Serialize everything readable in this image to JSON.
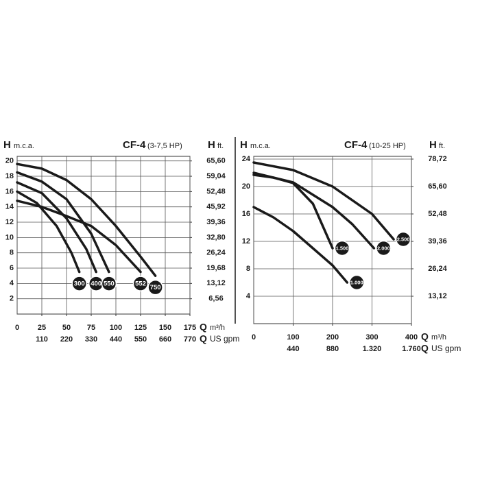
{
  "chart_data": [
    {
      "type": "line",
      "title": "CF-4",
      "subtitle": "(3-7,5 HP)",
      "y_label": "H",
      "y_unit": "m.c.a.",
      "y2_label": "H",
      "y2_unit": "ft.",
      "x_label": "Q",
      "x_unit": "m³/h",
      "x2_label": "Q",
      "x2_unit": "US gpm",
      "xlim": [
        0,
        175
      ],
      "xticks": [
        0,
        25,
        50,
        75,
        100,
        125,
        150,
        175
      ],
      "x2lim": [
        0,
        770
      ],
      "x2ticks": [
        110,
        220,
        330,
        440,
        550,
        660,
        770
      ],
      "ylim": [
        0,
        20.6
      ],
      "yticks": [
        2,
        4,
        6,
        8,
        10,
        12,
        14,
        16,
        18,
        20
      ],
      "y2lim": [
        0,
        67.57
      ],
      "y2ticks": [
        {
          "value": 6.56,
          "label": "6,56"
        },
        {
          "value": 13.12,
          "label": "13,12"
        },
        {
          "value": 19.68,
          "label": "19,68"
        },
        {
          "value": 26.24,
          "label": "26,24"
        },
        {
          "value": 32.8,
          "label": "32,80"
        },
        {
          "value": 39.36,
          "label": "39,36"
        },
        {
          "value": 45.92,
          "label": "45,92"
        },
        {
          "value": 52.48,
          "label": "52,48"
        },
        {
          "value": 59.04,
          "label": "59,04"
        },
        {
          "value": 65.6,
          "label": "65,60"
        }
      ],
      "grid": true,
      "series": [
        {
          "name": "300",
          "color": "#1a1a1a",
          "x": [
            0,
            20,
            40,
            55,
            63
          ],
          "values": [
            16,
            14.5,
            11.5,
            8,
            5.5
          ]
        },
        {
          "name": "400",
          "color": "#1a1a1a",
          "x": [
            0,
            25,
            50,
            70,
            80
          ],
          "values": [
            17.2,
            15.8,
            12.5,
            8.5,
            5.5
          ]
        },
        {
          "name": "550",
          "color": "#1a1a1a",
          "x": [
            0,
            25,
            50,
            75,
            93
          ],
          "values": [
            18.5,
            17.3,
            15,
            10.5,
            5.5
          ]
        },
        {
          "name": "552",
          "color": "#1a1a1a",
          "x": [
            0,
            25,
            50,
            75,
            100,
            125
          ],
          "values": [
            14.8,
            14,
            12.8,
            11.5,
            9,
            5.5
          ]
        },
        {
          "name": "750",
          "color": "#1a1a1a",
          "x": [
            0,
            25,
            50,
            75,
            100,
            125,
            140
          ],
          "values": [
            19.6,
            19,
            17.5,
            15,
            11.5,
            7.5,
            5
          ]
        }
      ]
    },
    {
      "type": "line",
      "title": "CF-4",
      "subtitle": "(10-25 HP)",
      "y_label": "H",
      "y_unit": "m.c.a.",
      "y2_label": "H",
      "y2_unit": "ft.",
      "x_label": "Q",
      "x_unit": "m³/h",
      "x2_label": "Q",
      "x2_unit": "US gpm",
      "xlim": [
        0,
        400
      ],
      "xticks": [
        0,
        100,
        200,
        300,
        400
      ],
      "x2lim": [
        0,
        1760
      ],
      "x2ticks": [
        440,
        880,
        {
          "value": 1320,
          "label": "1.320"
        },
        {
          "value": 1760,
          "label": "1.760"
        }
      ],
      "ylim": [
        0,
        24.4
      ],
      "yticks": [
        4,
        8,
        12,
        16,
        20,
        24
      ],
      "y2lim": [
        0,
        80.03
      ],
      "y2ticks": [
        {
          "value": 13.12,
          "label": "13,12"
        },
        {
          "value": 26.24,
          "label": "26,24"
        },
        {
          "value": 39.36,
          "label": "39,36"
        },
        {
          "value": 52.48,
          "label": "52,48"
        },
        {
          "value": 65.6,
          "label": "65,60"
        },
        {
          "value": 78.72,
          "label": "78,72"
        }
      ],
      "grid": true,
      "series": [
        {
          "name": "1.500",
          "color": "#1a1a1a",
          "x": [
            0,
            50,
            100,
            150,
            200
          ],
          "values": [
            21.7,
            21.3,
            20.5,
            17.5,
            11
          ]
        },
        {
          "name": "1.000",
          "color": "#1a1a1a",
          "x": [
            0,
            50,
            100,
            150,
            200,
            237
          ],
          "values": [
            17,
            15.5,
            13.5,
            11,
            8.5,
            6
          ]
        },
        {
          "name": "2.000",
          "color": "#1a1a1a",
          "x": [
            0,
            100,
            200,
            250,
            305
          ],
          "values": [
            22,
            20.6,
            17,
            14.5,
            11
          ]
        },
        {
          "name": "2.500",
          "color": "#1a1a1a",
          "x": [
            0,
            100,
            200,
            300,
            355
          ],
          "values": [
            23.5,
            22.4,
            20,
            16,
            12.3
          ]
        }
      ]
    }
  ]
}
